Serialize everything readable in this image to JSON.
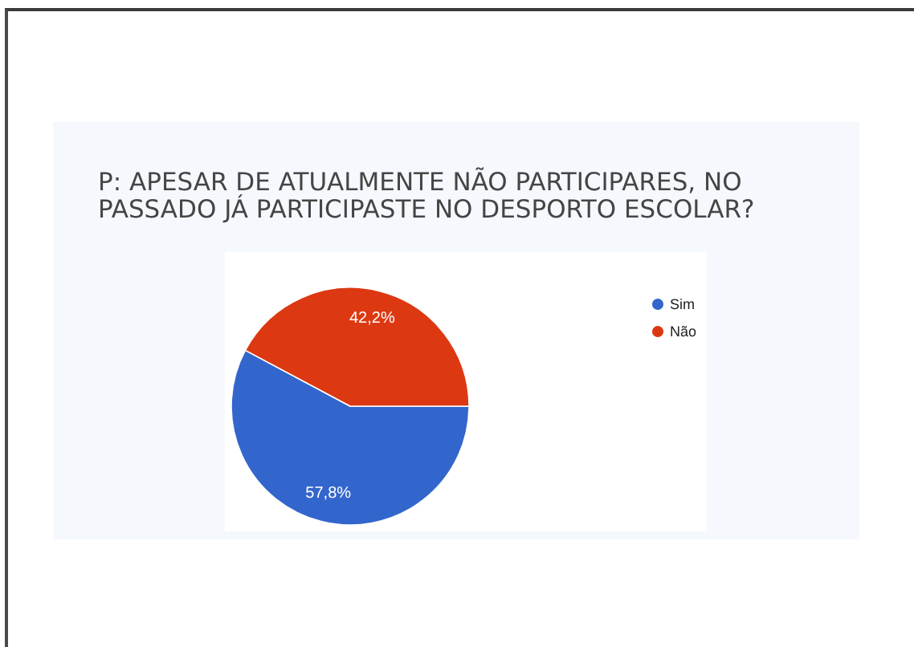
{
  "chart_data": {
    "type": "pie",
    "title": "P: APESAR DE ATUALMENTE NÃO PARTICIPARES, NO PASSADO JÁ PARTICIPASTE NO DESPORTO ESCOLAR?",
    "categories": [
      "Sim",
      "Não"
    ],
    "values": [
      57.8,
      42.2
    ],
    "colors": [
      "#3366cc",
      "#dc3912"
    ],
    "value_labels": [
      "57,8%",
      "42,2%"
    ],
    "legend": "top right"
  }
}
